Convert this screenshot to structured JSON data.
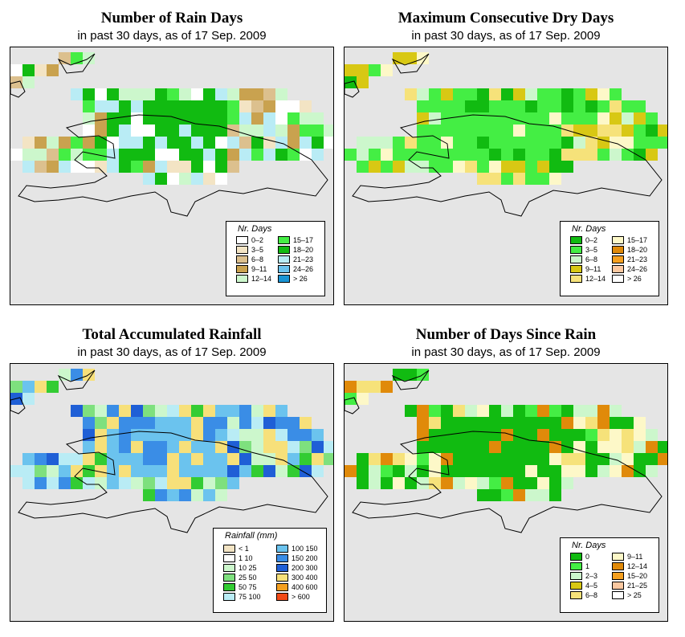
{
  "panels": [
    {
      "id": "rain-days",
      "title": "Number of Rain Days",
      "subtitle": "in past 30 days, as of  17 Sep. 2009",
      "legend_title": "Nr. Days",
      "legend": [
        {
          "label": "0–2",
          "color": "#ffffff"
        },
        {
          "label": "3–5",
          "color": "#f3e4c4"
        },
        {
          "label": "6–8",
          "color": "#dcc08e"
        },
        {
          "label": "9–11",
          "color": "#c9a24f"
        },
        {
          "label": "12–14",
          "color": "#ccf7cc"
        },
        {
          "label": "15–17",
          "color": "#44ee44"
        },
        {
          "label": "18–20",
          "color": "#11bb11"
        },
        {
          "label": "21–23",
          "color": "#b9ecf5"
        },
        {
          "label": "24–26",
          "color": "#6bc3ee"
        },
        {
          "label": "> 26",
          "color": "#1a94d4"
        }
      ]
    },
    {
      "id": "dry-days",
      "title": "Maximum Consecutive Dry Days",
      "subtitle": "in past 30 days, as of  17 Sep. 2009",
      "legend_title": "Nr. Days",
      "legend": [
        {
          "label": "0–2",
          "color": "#11bb11"
        },
        {
          "label": "3–5",
          "color": "#44ee44"
        },
        {
          "label": "6–8",
          "color": "#ccf7cc"
        },
        {
          "label": "9–11",
          "color": "#d8c814"
        },
        {
          "label": "12–14",
          "color": "#f6e27a"
        },
        {
          "label": "15–17",
          "color": "#fdf8c8"
        },
        {
          "label": "18–20",
          "color": "#e08a0a"
        },
        {
          "label": "21–23",
          "color": "#f5a020"
        },
        {
          "label": "24–26",
          "color": "#fbc8a0"
        },
        {
          "label": "> 26",
          "color": "#ffffff"
        }
      ]
    },
    {
      "id": "rainfall",
      "title": "Total Accumulated Rainfall",
      "subtitle": "in past 30 days, as of  17 Sep. 2009",
      "legend_title": "Rainfall (mm)",
      "legend": [
        {
          "label": "< 1",
          "color": "#f3e4c4"
        },
        {
          "label": "1   10",
          "color": "#ffffff"
        },
        {
          "label": "10   25",
          "color": "#ccf7cc"
        },
        {
          "label": "25   50",
          "color": "#7ee07e"
        },
        {
          "label": "50   75",
          "color": "#33cc33"
        },
        {
          "label": "75   100",
          "color": "#b9ecf5"
        },
        {
          "label": "100   150",
          "color": "#6bc3ee"
        },
        {
          "label": "150   200",
          "color": "#3a8de6"
        },
        {
          "label": "200   300",
          "color": "#1f5fd6"
        },
        {
          "label": "300   400",
          "color": "#f7e07a"
        },
        {
          "label": "400   600",
          "color": "#f5a020"
        },
        {
          "label": "> 600",
          "color": "#f24a16"
        }
      ]
    },
    {
      "id": "since-rain",
      "title": "Number of Days Since Rain",
      "subtitle": "in past 30 days, as of  17 Sep. 2009",
      "legend_title": "Nr. Days",
      "legend": [
        {
          "label": "0",
          "color": "#11bb11"
        },
        {
          "label": "1",
          "color": "#44ee44"
        },
        {
          "label": "2–3",
          "color": "#ccf7cc"
        },
        {
          "label": "4–5",
          "color": "#d8c814"
        },
        {
          "label": "6–8",
          "color": "#f6e27a"
        },
        {
          "label": "9–11",
          "color": "#fdf8c8"
        },
        {
          "label": "12–14",
          "color": "#e08a0a"
        },
        {
          "label": "15–20",
          "color": "#f5a020"
        },
        {
          "label": "21–25",
          "color": "#fbc8a0"
        },
        {
          "label": "> 25",
          "color": "#ffffff"
        }
      ]
    }
  ]
}
